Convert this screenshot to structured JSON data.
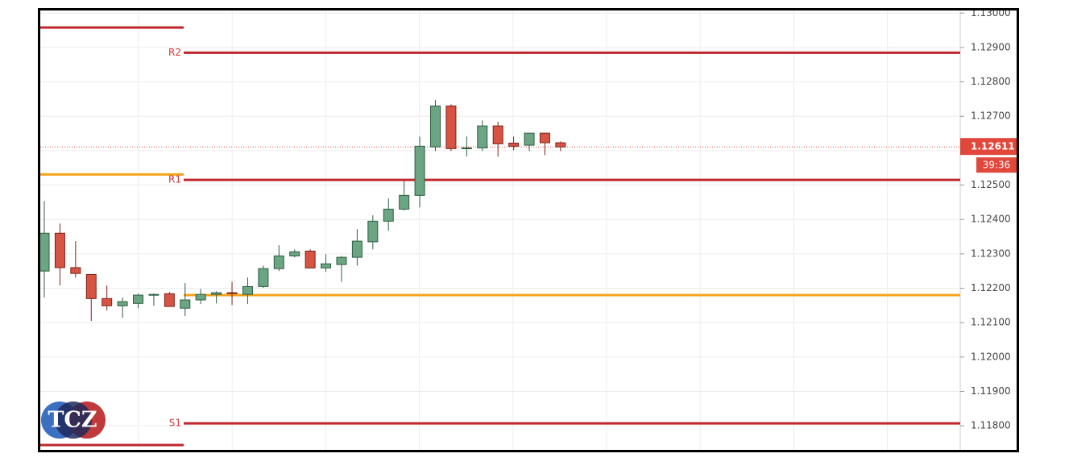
{
  "chart_data": {
    "type": "candlestick",
    "ylim": [
      1.1173,
      1.1301
    ],
    "yticks": [
      {
        "value": 1.13,
        "label": "1.13000"
      },
      {
        "value": 1.129,
        "label": "1.12900"
      },
      {
        "value": 1.128,
        "label": "1.12800"
      },
      {
        "value": 1.127,
        "label": "1.12700"
      },
      {
        "value": 1.126,
        "label": "1.12600"
      },
      {
        "value": 1.125,
        "label": "1.12500"
      },
      {
        "value": 1.124,
        "label": "1.12400"
      },
      {
        "value": 1.123,
        "label": "1.12300"
      },
      {
        "value": 1.122,
        "label": "1.12200"
      },
      {
        "value": 1.121,
        "label": "1.12100"
      },
      {
        "value": 1.12,
        "label": "1.12000"
      },
      {
        "value": 1.119,
        "label": "1.11900"
      },
      {
        "value": 1.118,
        "label": "1.11800"
      }
    ],
    "grid": true,
    "up_color": "#6ba583",
    "down_color": "#d75442",
    "open": [
      1.1225,
      1.1236,
      1.1226,
      1.1224,
      1.1217,
      1.12149,
      1.12156,
      1.1218,
      1.12184,
      1.12142,
      1.12166,
      1.12182,
      1.12187,
      1.12182,
      1.12205,
      1.12257,
      1.12294,
      1.12308,
      1.12259,
      1.12269,
      1.1229,
      1.12335,
      1.12395,
      1.1243,
      1.1247,
      1.12611,
      1.1273,
      1.12606,
      1.12608,
      1.12672,
      1.12622,
      1.12616,
      1.12651,
      1.12623
    ],
    "high": [
      1.12454,
      1.12388,
      1.12337,
      1.1224,
      1.12208,
      1.12173,
      1.12184,
      1.12185,
      1.12189,
      1.12215,
      1.12198,
      1.12191,
      1.12219,
      1.12231,
      1.12266,
      1.12325,
      1.12313,
      1.12313,
      1.12299,
      1.12294,
      1.12372,
      1.12412,
      1.12461,
      1.12512,
      1.12641,
      1.12747,
      1.12735,
      1.12641,
      1.12688,
      1.12684,
      1.12641,
      1.12651,
      1.12651,
      1.12627
    ],
    "low": [
      1.12173,
      1.12208,
      1.12231,
      1.12105,
      1.12135,
      1.12114,
      1.12142,
      1.12149,
      1.12147,
      1.12119,
      1.12154,
      1.12156,
      1.12151,
      1.12154,
      1.12201,
      1.1225,
      1.1229,
      1.12259,
      1.12248,
      1.12219,
      1.12266,
      1.12313,
      1.12367,
      1.12426,
      1.12435,
      1.12599,
      1.12599,
      1.12583,
      1.12599,
      1.12583,
      1.12601,
      1.12599,
      1.12587,
      1.12599
    ],
    "close": [
      1.1236,
      1.1226,
      1.12243,
      1.1217,
      1.12149,
      1.12161,
      1.1218,
      1.12182,
      1.12147,
      1.12166,
      1.12182,
      1.12187,
      1.12185,
      1.12205,
      1.12257,
      1.12294,
      1.12306,
      1.12259,
      1.12271,
      1.1229,
      1.12337,
      1.12395,
      1.1243,
      1.1247,
      1.12613,
      1.1273,
      1.12606,
      1.12608,
      1.12672,
      1.1262,
      1.12613,
      1.12651,
      1.12623,
      1.12611
    ],
    "levels": [
      {
        "label": "R2",
        "value": 1.12885,
        "color": "#c0262d"
      },
      {
        "label": "R1",
        "value": 1.12515,
        "color": "#c0262d"
      },
      {
        "label": "S1",
        "value": 1.11807,
        "color": "#c0262d"
      },
      {
        "value": 1.1218,
        "color": "#f7a21b"
      }
    ],
    "previous_levels": [
      {
        "value": 1.12958,
        "color": "#c0262d"
      },
      {
        "value": 1.12531,
        "color": "#f7a21b"
      },
      {
        "value": 1.11744,
        "color": "#c0262d"
      }
    ],
    "current_price": 1.12611,
    "price_color": "#e0483b",
    "countdown": "39:36",
    "logo": "TCZ"
  }
}
